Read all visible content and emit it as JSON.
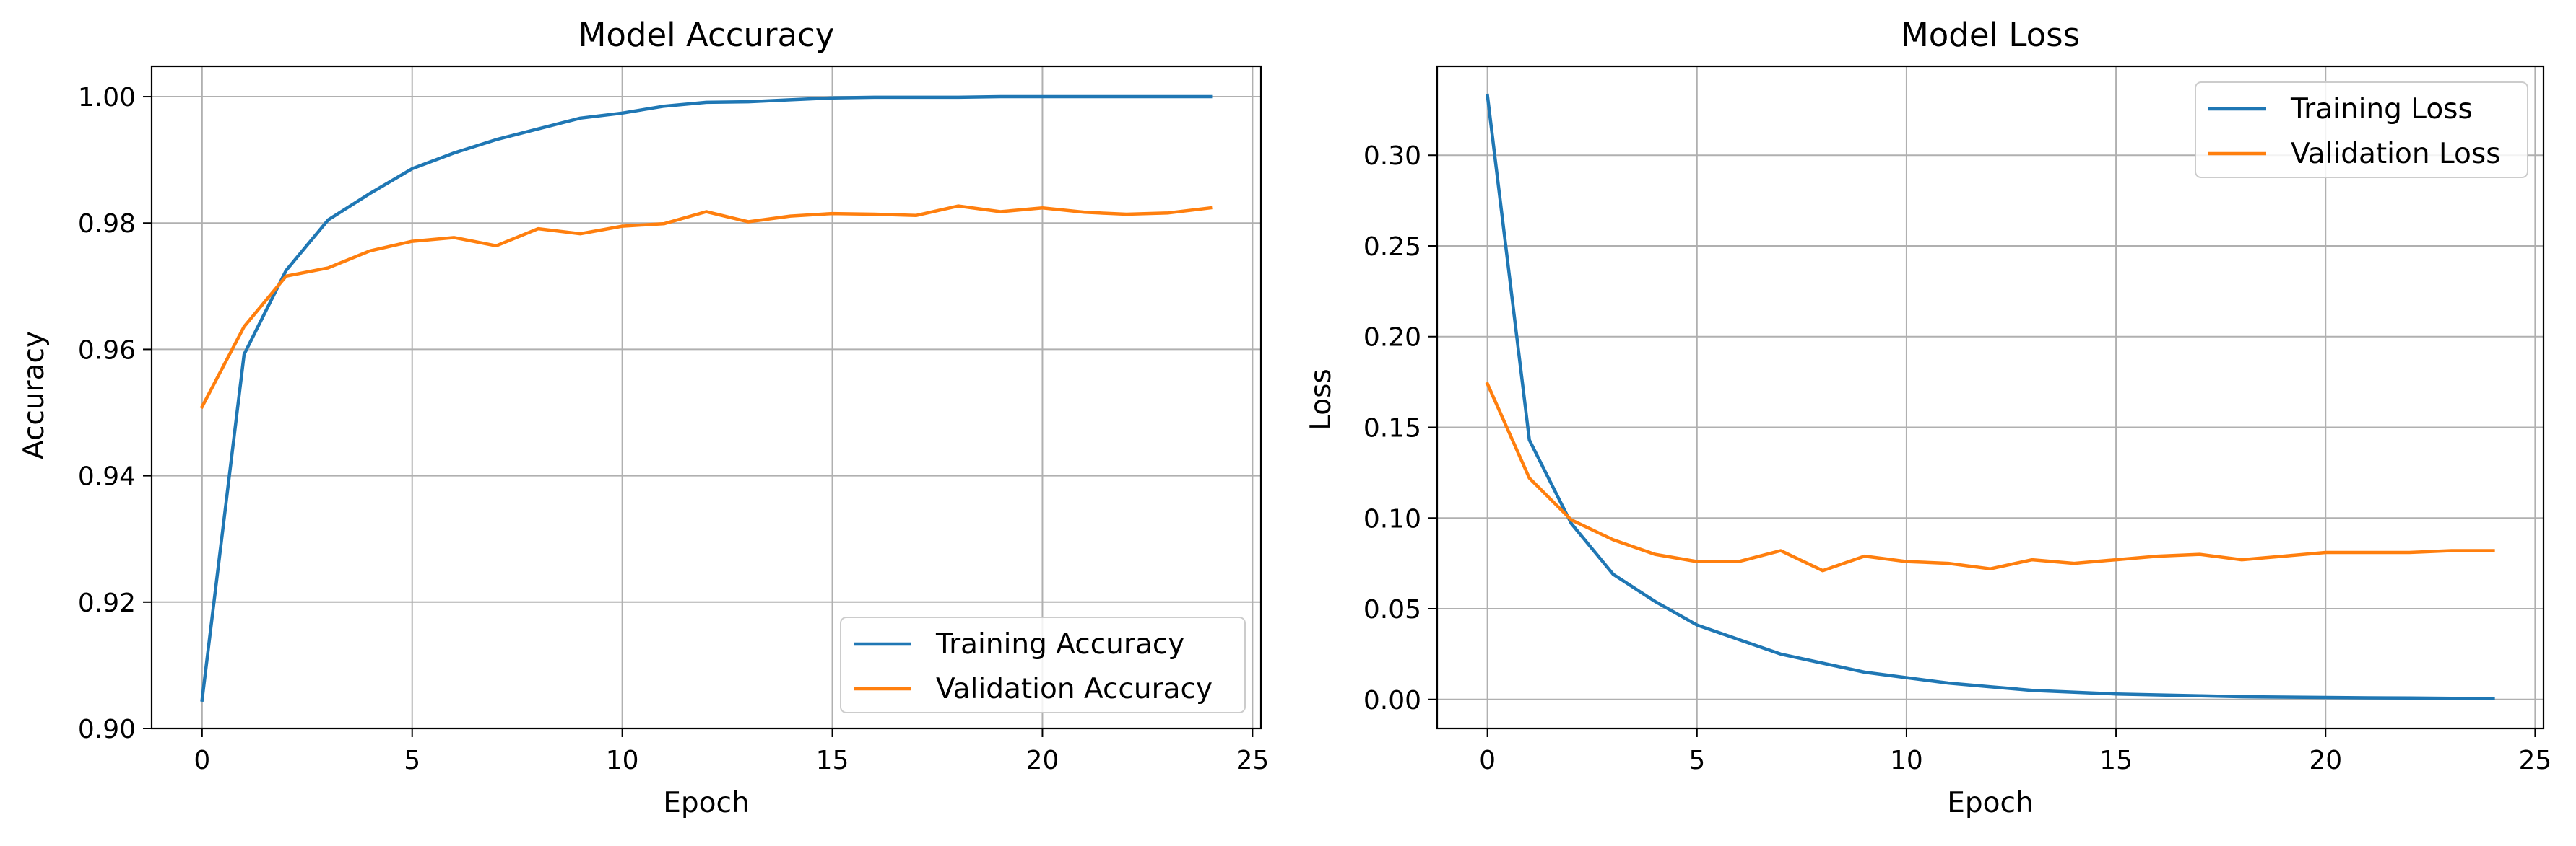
{
  "chart_data": [
    {
      "type": "line",
      "title": "Model Accuracy",
      "xlabel": "Epoch",
      "ylabel": "Accuracy",
      "xlim": [
        -1.2,
        25.2
      ],
      "ylim": [
        0.9,
        1.0048
      ],
      "xticks": [
        0,
        5,
        10,
        15,
        20,
        25
      ],
      "xtick_labels": [
        "0",
        "5",
        "10",
        "15",
        "20",
        "25"
      ],
      "yticks": [
        0.9,
        0.92,
        0.94,
        0.96,
        0.98,
        1.0
      ],
      "ytick_labels": [
        "0.90",
        "0.92",
        "0.94",
        "0.96",
        "0.98",
        "1.00"
      ],
      "grid": true,
      "legend_position": "lower-right",
      "x": [
        0,
        1,
        2,
        3,
        4,
        5,
        6,
        7,
        8,
        9,
        10,
        11,
        12,
        13,
        14,
        15,
        16,
        17,
        18,
        19,
        20,
        21,
        22,
        23,
        24
      ],
      "series": [
        {
          "name": "Training Accuracy",
          "color": "#1f77b4",
          "values": [
            0.9045,
            0.9592,
            0.9725,
            0.9805,
            0.9847,
            0.9886,
            0.9911,
            0.9932,
            0.9949,
            0.9966,
            0.9974,
            0.9985,
            0.9991,
            0.9992,
            0.9995,
            0.9998,
            0.9999,
            0.9999,
            0.9999,
            1.0,
            1.0,
            1.0,
            1.0,
            1.0,
            1.0
          ]
        },
        {
          "name": "Validation Accuracy",
          "color": "#ff7f0e",
          "values": [
            0.9509,
            0.9636,
            0.9716,
            0.9729,
            0.9756,
            0.9771,
            0.9777,
            0.9764,
            0.9791,
            0.9783,
            0.9795,
            0.9799,
            0.9818,
            0.9802,
            0.9811,
            0.9815,
            0.9814,
            0.9812,
            0.9827,
            0.9818,
            0.9824,
            0.9817,
            0.9814,
            0.9816,
            0.9824
          ]
        }
      ]
    },
    {
      "type": "line",
      "title": "Model Loss",
      "xlabel": "Epoch",
      "ylabel": "Loss",
      "xlim": [
        -1.2,
        25.2
      ],
      "ylim": [
        -0.016,
        0.349
      ],
      "xticks": [
        0,
        5,
        10,
        15,
        20,
        25
      ],
      "xtick_labels": [
        "0",
        "5",
        "10",
        "15",
        "20",
        "25"
      ],
      "yticks": [
        0.0,
        0.05,
        0.1,
        0.15,
        0.2,
        0.25,
        0.3
      ],
      "ytick_labels": [
        "0.00",
        "0.05",
        "0.10",
        "0.15",
        "0.20",
        "0.25",
        "0.30"
      ],
      "grid": true,
      "legend_position": "upper-right",
      "x": [
        0,
        1,
        2,
        3,
        4,
        5,
        6,
        7,
        8,
        9,
        10,
        11,
        12,
        13,
        14,
        15,
        16,
        17,
        18,
        19,
        20,
        21,
        22,
        23,
        24
      ],
      "series": [
        {
          "name": "Training Loss",
          "color": "#1f77b4",
          "values": [
            0.333,
            0.143,
            0.097,
            0.069,
            0.054,
            0.041,
            0.033,
            0.025,
            0.02,
            0.015,
            0.012,
            0.009,
            0.007,
            0.005,
            0.004,
            0.003,
            0.0025,
            0.002,
            0.0015,
            0.0013,
            0.0011,
            0.0009,
            0.0008,
            0.0006,
            0.0005
          ]
        },
        {
          "name": "Validation Loss",
          "color": "#ff7f0e",
          "values": [
            0.174,
            0.122,
            0.099,
            0.088,
            0.08,
            0.076,
            0.076,
            0.082,
            0.071,
            0.079,
            0.076,
            0.075,
            0.072,
            0.077,
            0.075,
            0.077,
            0.079,
            0.08,
            0.077,
            0.079,
            0.081,
            0.081,
            0.081,
            0.082,
            0.082
          ]
        }
      ]
    }
  ]
}
